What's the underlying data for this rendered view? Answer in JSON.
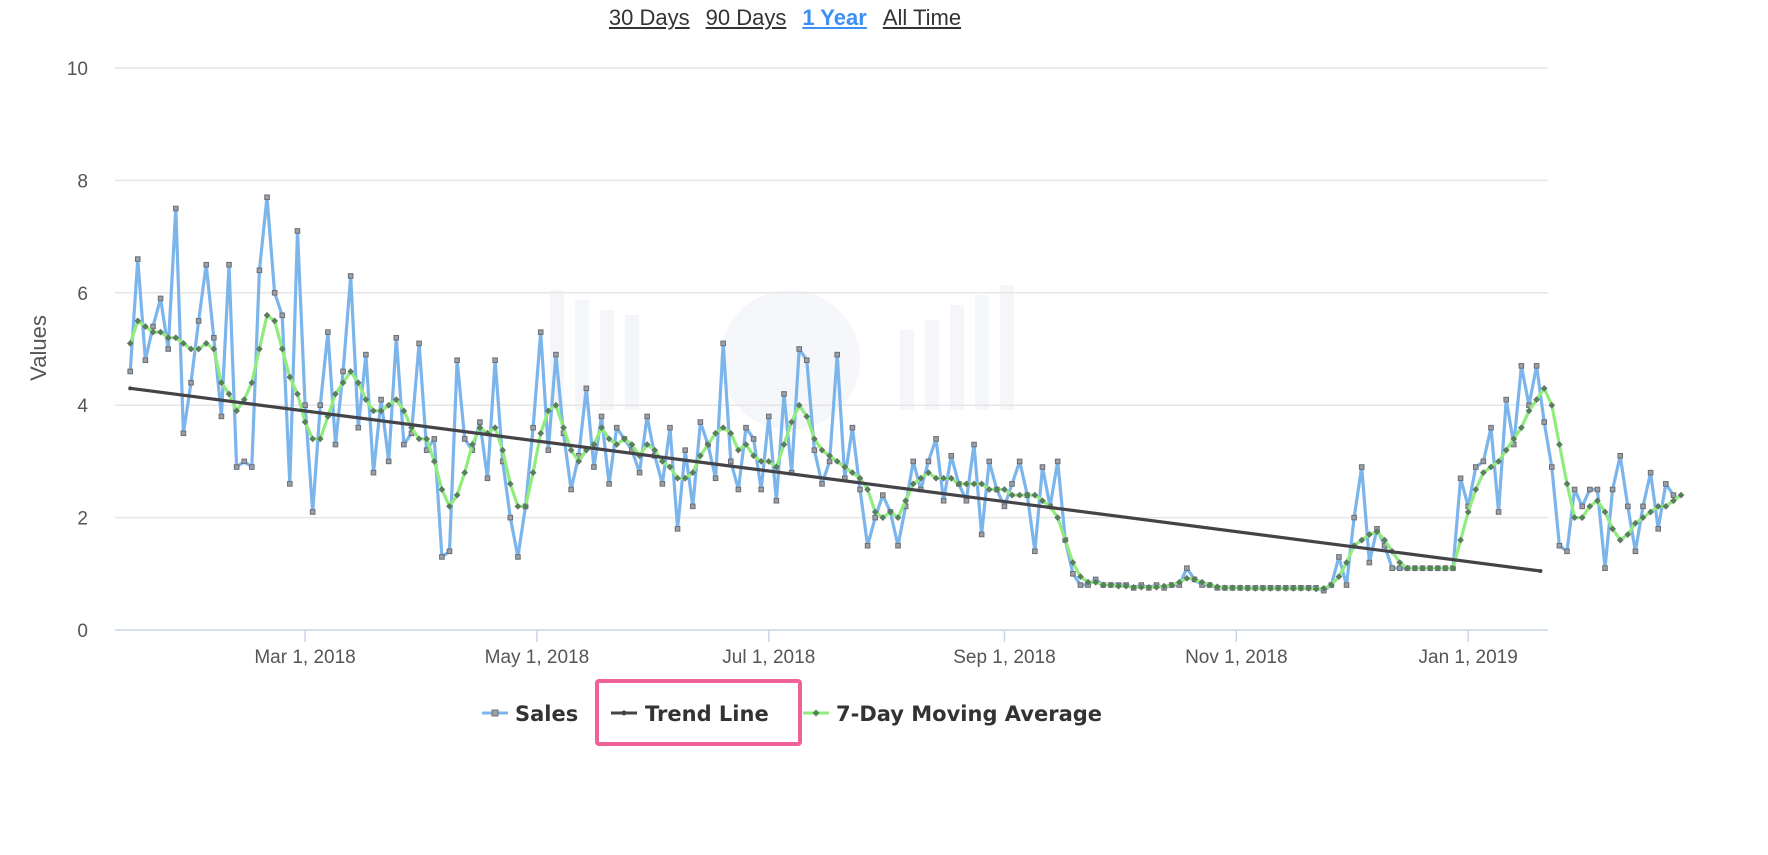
{
  "range_selector": {
    "options": [
      "30 Days",
      "90 Days",
      "1 Year",
      "All Time"
    ],
    "active": "1 Year"
  },
  "colors": {
    "sales": "#7cb5ec",
    "trend": "#434348",
    "moving_average": "#90ed7d",
    "marker": "#6b6f75",
    "grid": "#e6e6e6",
    "highlight_box": "#f0619a"
  },
  "chart_data": {
    "type": "line",
    "title": "",
    "xlabel": "",
    "ylabel": "Values",
    "ylim": [
      0,
      10
    ],
    "yticks": [
      0,
      2,
      4,
      6,
      8,
      10
    ],
    "xlim": [
      "2018-01-10",
      "2019-01-22"
    ],
    "xticks": [
      {
        "date": "2018-03-01",
        "label": "Mar 1, 2018"
      },
      {
        "date": "2018-05-01",
        "label": "May 1, 2018"
      },
      {
        "date": "2018-07-01",
        "label": "Jul 1, 2018"
      },
      {
        "date": "2018-09-01",
        "label": "Sep 1, 2018"
      },
      {
        "date": "2018-11-01",
        "label": "Nov 1, 2018"
      },
      {
        "date": "2019-01-01",
        "label": "Jan 1, 2019"
      }
    ],
    "grid": true,
    "legend_position": "bottom-center",
    "highlighted_legend_item": "Trend Line",
    "series": [
      {
        "name": "Sales",
        "start_date": "2018-01-14",
        "interval_days": 2,
        "values": [
          4.6,
          6.6,
          4.8,
          5.4,
          5.9,
          5.0,
          7.5,
          3.5,
          4.4,
          5.5,
          6.5,
          5.2,
          3.8,
          6.5,
          2.9,
          3.0,
          2.9,
          6.4,
          7.7,
          6.0,
          5.6,
          2.6,
          7.1,
          4.0,
          2.1,
          4.0,
          5.3,
          3.3,
          4.6,
          6.3,
          3.6,
          4.9,
          2.8,
          4.1,
          3.0,
          5.2,
          3.3,
          3.5,
          5.1,
          3.2,
          3.4,
          1.3,
          1.4,
          4.8,
          3.4,
          3.2,
          3.7,
          2.7,
          4.8,
          3.0,
          2.0,
          1.3,
          2.2,
          3.6,
          5.3,
          3.2,
          4.9,
          3.5,
          2.5,
          3.1,
          4.3,
          2.9,
          3.8,
          2.6,
          3.6,
          3.4,
          3.2,
          2.8,
          3.8,
          3.1,
          2.6,
          3.6,
          1.8,
          3.2,
          2.2,
          3.7,
          3.3,
          2.7,
          5.1,
          3.0,
          2.5,
          3.6,
          3.4,
          2.5,
          3.8,
          2.3,
          4.2,
          2.8,
          5.0,
          4.8,
          3.2,
          2.6,
          3.0,
          4.9,
          2.7,
          3.6,
          2.5,
          1.5,
          2.0,
          2.4,
          2.1,
          1.5,
          2.2,
          3.0,
          2.5,
          3.0,
          3.4,
          2.3,
          3.1,
          2.6,
          2.3,
          3.3,
          1.7,
          3.0,
          2.5,
          2.2,
          2.6,
          3.0,
          2.4,
          1.4,
          2.9,
          2.2,
          3.0,
          1.6,
          1.0,
          0.8,
          0.8,
          0.9,
          0.8,
          0.8,
          0.8,
          0.8,
          0.75,
          0.8,
          0.75,
          0.8,
          0.75,
          0.8,
          0.8,
          1.1,
          0.9,
          0.8,
          0.8,
          0.75,
          0.75,
          0.75,
          0.75,
          0.75,
          0.75,
          0.75,
          0.75,
          0.75,
          0.75,
          0.75,
          0.75,
          0.75,
          0.75,
          0.7,
          0.8,
          1.3,
          0.8,
          2.0,
          2.9,
          1.2,
          1.8,
          1.5,
          1.1,
          1.1,
          1.1,
          1.1,
          1.1,
          1.1,
          1.1,
          1.1,
          1.1,
          2.7,
          2.2,
          2.9,
          3.0,
          3.6,
          2.1,
          4.1,
          3.3,
          4.7,
          4.0,
          4.7,
          3.7,
          2.9,
          1.5,
          1.4,
          2.5,
          2.2,
          2.5,
          2.5,
          1.1,
          2.5,
          3.1,
          2.2,
          1.4,
          2.2,
          2.8,
          1.8,
          2.6,
          2.4
        ]
      },
      {
        "name": "Trend Line",
        "points": [
          {
            "date": "2018-01-14",
            "value": 4.3
          },
          {
            "date": "2019-01-20",
            "value": 1.05
          }
        ]
      },
      {
        "name": "7-Day Moving Average",
        "start_date": "2018-01-14",
        "interval_days": 2,
        "values": [
          5.1,
          5.5,
          5.4,
          5.3,
          5.3,
          5.2,
          5.2,
          5.1,
          5.0,
          5.0,
          5.1,
          5.0,
          4.4,
          4.2,
          3.9,
          4.1,
          4.4,
          5.0,
          5.6,
          5.5,
          5.0,
          4.5,
          4.2,
          3.7,
          3.4,
          3.4,
          3.8,
          4.2,
          4.4,
          4.6,
          4.4,
          4.1,
          3.9,
          3.9,
          4.0,
          4.1,
          3.9,
          3.6,
          3.4,
          3.4,
          3.0,
          2.5,
          2.2,
          2.4,
          2.8,
          3.3,
          3.6,
          3.5,
          3.6,
          3.2,
          2.6,
          2.2,
          2.2,
          2.8,
          3.5,
          3.9,
          4.0,
          3.6,
          3.2,
          3.0,
          3.2,
          3.3,
          3.6,
          3.4,
          3.3,
          3.4,
          3.3,
          3.1,
          3.3,
          3.2,
          3.0,
          2.9,
          2.7,
          2.7,
          2.8,
          3.1,
          3.3,
          3.5,
          3.6,
          3.5,
          3.2,
          3.3,
          3.1,
          3.0,
          3.0,
          2.9,
          3.3,
          3.7,
          4.0,
          3.8,
          3.4,
          3.2,
          3.1,
          3.0,
          2.9,
          2.8,
          2.7,
          2.5,
          2.1,
          2.0,
          2.1,
          2.0,
          2.3,
          2.6,
          2.7,
          2.8,
          2.7,
          2.7,
          2.7,
          2.6,
          2.6,
          2.6,
          2.6,
          2.5,
          2.5,
          2.5,
          2.4,
          2.4,
          2.4,
          2.4,
          2.3,
          2.2,
          2.0,
          1.6,
          1.2,
          0.95,
          0.85,
          0.85,
          0.8,
          0.8,
          0.78,
          0.78,
          0.76,
          0.76,
          0.76,
          0.76,
          0.78,
          0.8,
          0.85,
          0.92,
          0.9,
          0.85,
          0.8,
          0.77,
          0.75,
          0.75,
          0.75,
          0.74,
          0.74,
          0.74,
          0.74,
          0.74,
          0.74,
          0.74,
          0.74,
          0.74,
          0.73,
          0.74,
          0.8,
          0.95,
          1.2,
          1.5,
          1.6,
          1.7,
          1.75,
          1.6,
          1.4,
          1.2,
          1.1,
          1.1,
          1.1,
          1.1,
          1.1,
          1.1,
          1.1,
          1.6,
          2.1,
          2.5,
          2.8,
          2.9,
          3.0,
          3.2,
          3.4,
          3.6,
          3.9,
          4.1,
          4.3,
          4.0,
          3.3,
          2.6,
          2.0,
          2.0,
          2.2,
          2.3,
          2.1,
          1.8,
          1.6,
          1.7,
          1.9,
          2.0,
          2.1,
          2.2,
          2.2,
          2.3,
          2.4
        ]
      }
    ]
  }
}
